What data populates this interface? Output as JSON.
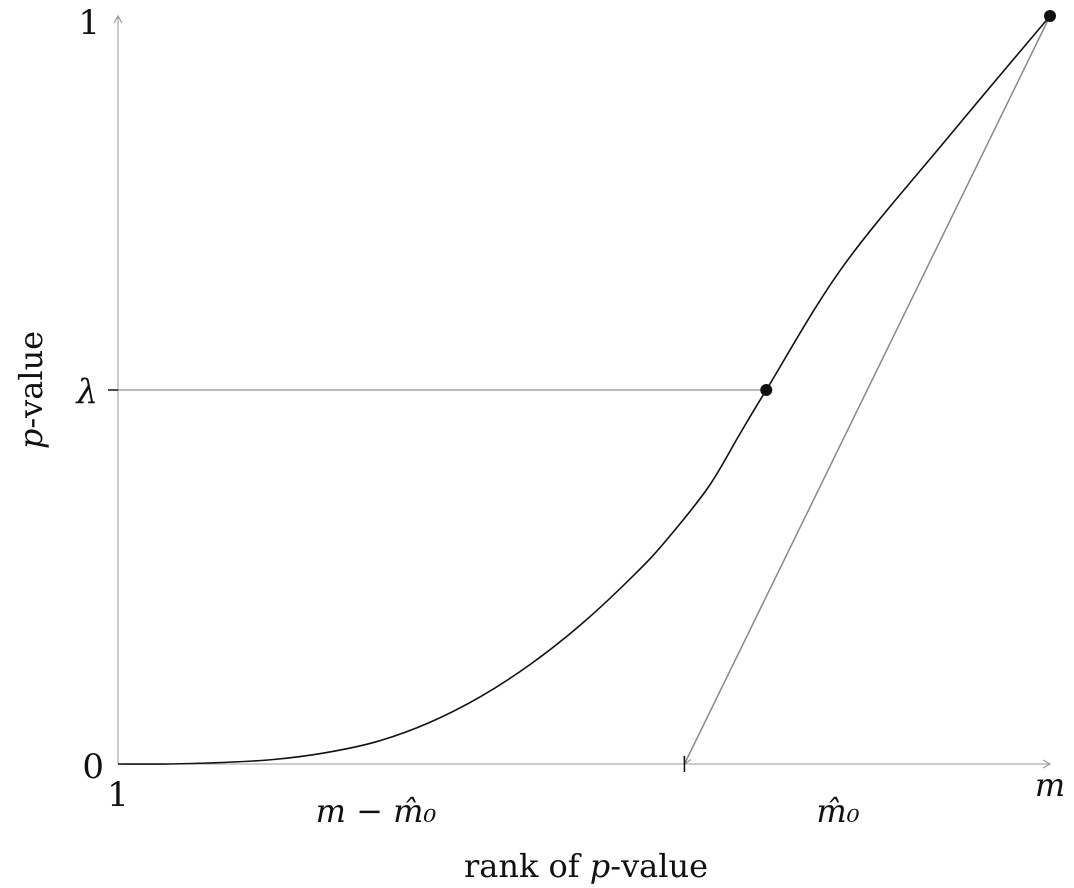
{
  "chart_data": {
    "type": "line",
    "xlabel_text": "rank of ",
    "xlabel_var": "p",
    "xlabel_suffix": "-value",
    "ylabel_var": "p",
    "ylabel_suffix": "-value",
    "x_tick_labels": {
      "one": "1",
      "m_minus": "m − m̂₀",
      "m0": "m̂₀",
      "m": "m"
    },
    "y_tick_labels": {
      "zero": "0",
      "lambda": "λ",
      "one": "1"
    },
    "x_domain": [
      1,
      10
    ],
    "y_domain": [
      0,
      1
    ],
    "points": {
      "m0": 7.26,
      "lambda": 0.5,
      "m_minus_m0": 6.47,
      "m": 10
    },
    "curve": [
      [
        1.0,
        0.0
      ],
      [
        1.5,
        0.0
      ],
      [
        2.0,
        0.002
      ],
      [
        2.5,
        0.006
      ],
      [
        3.0,
        0.015
      ],
      [
        3.5,
        0.03
      ],
      [
        4.0,
        0.055
      ],
      [
        4.5,
        0.09
      ],
      [
        5.0,
        0.135
      ],
      [
        5.5,
        0.19
      ],
      [
        6.0,
        0.255
      ],
      [
        6.3,
        0.3
      ],
      [
        6.7,
        0.37
      ],
      [
        7.0,
        0.44
      ],
      [
        7.26,
        0.5
      ],
      [
        8.0,
        0.665
      ],
      [
        9.0,
        0.835
      ],
      [
        10.0,
        1.0
      ]
    ]
  }
}
